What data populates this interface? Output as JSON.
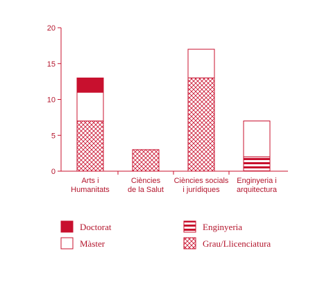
{
  "chart_data": {
    "type": "bar",
    "stacked": true,
    "categories": [
      [
        "Arts i",
        "Humanitats"
      ],
      [
        "Ciències",
        "de la Salut"
      ],
      [
        "Ciències socials",
        "i jurídiques"
      ],
      [
        "Enginyeria i",
        "arquitectura"
      ]
    ],
    "series": [
      {
        "name": "Grau/Llicenciatura",
        "values": [
          7,
          3,
          13,
          0
        ],
        "style": "crosshatch"
      },
      {
        "name": "Enginyeria",
        "values": [
          0,
          0,
          0,
          2
        ],
        "style": "stripes"
      },
      {
        "name": "Màster",
        "values": [
          4,
          0,
          4,
          5
        ],
        "style": "outline"
      },
      {
        "name": "Doctorat",
        "values": [
          2,
          0,
          0,
          0
        ],
        "style": "solid"
      }
    ],
    "legend_order": [
      "Doctorat",
      "Màster",
      "Enginyeria",
      "Grau/Llicenciatura"
    ],
    "ylim": [
      0,
      20
    ],
    "yticks": [
      0,
      5,
      10,
      15,
      20
    ],
    "xlabel": "",
    "ylabel": "",
    "grid": false,
    "legend_position": "bottom"
  },
  "colors": {
    "accent": "#c8102e",
    "text": "#b3152c"
  }
}
